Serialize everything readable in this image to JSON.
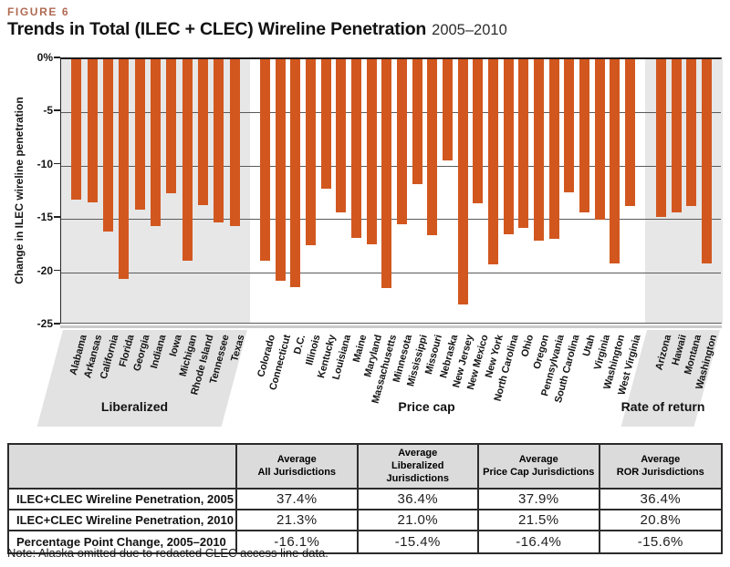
{
  "figure_label": "FIGURE 6",
  "title": {
    "main": "Trends in Total (ILEC + CLEC) Wireline Penetration",
    "suffix": "2005–2010"
  },
  "colors": {
    "accent": "#B06A52",
    "bar": "#D2571F",
    "band": "#E7E7E7",
    "panel": "#E2E2E2",
    "table_header_bg": "#DBDBDB",
    "grid_line": "#5a5a5a"
  },
  "chart_data": {
    "type": "bar",
    "title": "Trends in Total (ILEC + CLEC) Wireline Penetration",
    "subtitle": "2005–2010",
    "ylabel": "Change in ILEC wireline penetration",
    "xlabel": "",
    "ylim": [
      -25,
      0
    ],
    "yticks": [
      "0%",
      "-5",
      "-10",
      "-15",
      "-20",
      "-25"
    ],
    "grid": true,
    "legend": "none",
    "groups": [
      {
        "label": "Liberalized",
        "shaded": true,
        "categories": [
          "Alabama",
          "Arkansas",
          "California",
          "Florida",
          "Georgia",
          "Indiana",
          "Iowa",
          "Michigan",
          "Rhode Island",
          "Tennessee",
          "Texas"
        ],
        "values": [
          -13.2,
          -13.4,
          -16.2,
          -20.6,
          -14.1,
          -15.7,
          -12.6,
          -18.9,
          -13.7,
          -15.3,
          -15.7
        ]
      },
      {
        "label": "Price cap",
        "shaded": false,
        "categories": [
          "Colorado",
          "Connecticut",
          "D.C.",
          "Illinois",
          "Kentucky",
          "Louisiana",
          "Maine",
          "Maryland",
          "Massachusetts",
          "Minnesota",
          "Mississippi",
          "Missouri",
          "Nebraska",
          "New Jersey",
          "New Mexico",
          "New York",
          "North Carolina",
          "Ohio",
          "Oregon",
          "Pennsylvania",
          "South Carolina",
          "Utah",
          "Virginia",
          "Washington",
          "West Virginia"
        ],
        "values": [
          -18.9,
          -20.8,
          -21.4,
          -17.5,
          -12.2,
          -14.4,
          -16.8,
          -17.4,
          -21.5,
          -15.5,
          -11.7,
          -16.5,
          -9.5,
          -23.0,
          -13.5,
          -19.3,
          -16.4,
          -15.8,
          -17.0,
          -16.9,
          -12.5,
          -14.4,
          -15.1,
          -19.2,
          -13.8
        ]
      },
      {
        "label": "Rate of return",
        "shaded": true,
        "categories": [
          "Arizona",
          "Hawaii",
          "Montana",
          "Washington"
        ],
        "values": [
          -14.8,
          -14.4,
          -13.8,
          -19.2
        ]
      }
    ]
  },
  "table": {
    "columns": [
      {
        "top": "",
        "bottom": ""
      },
      {
        "top": "Average",
        "bottom": "All Jurisdictions"
      },
      {
        "top": "Average",
        "bottom": "Liberalized Jurisdictions"
      },
      {
        "top": "Average",
        "bottom": "Price Cap Jurisdictions"
      },
      {
        "top": "Average",
        "bottom": "ROR Jurisdictions"
      }
    ],
    "rows": [
      {
        "label": "ILEC+CLEC Wireline Penetration, 2005",
        "values": [
          "37.4%",
          "36.4%",
          "37.9%",
          "36.4%"
        ]
      },
      {
        "label": "ILEC+CLEC Wireline Penetration, 2010",
        "values": [
          "21.3%",
          "21.0%",
          "21.5%",
          "20.8%"
        ]
      },
      {
        "label": "Percentage Point Change, 2005–2010",
        "values": [
          "-16.1%",
          "-15.4%",
          "-16.4%",
          "-15.6%"
        ]
      }
    ]
  },
  "note": "Note: Alaska omitted due to redacted CLEC access line data."
}
